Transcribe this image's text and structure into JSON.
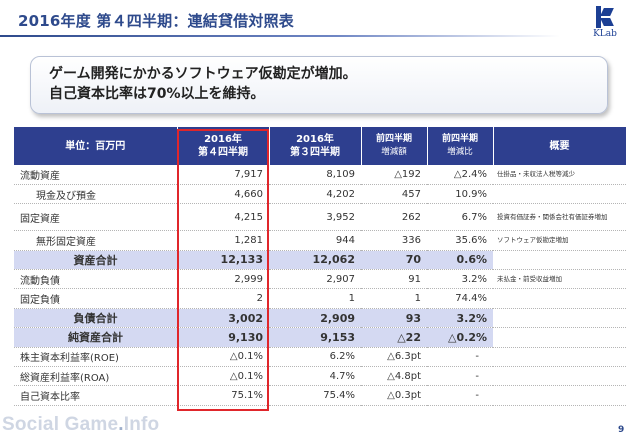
{
  "title": "2016年度 第４四半期：連結貸借対照表",
  "logo_text": "KLab",
  "callout": {
    "line1": "ゲーム開発にかかるソフトウェア仮勘定が増加。",
    "line2": "自己資本比率は70%以上を維持。"
  },
  "table": {
    "headers": {
      "unit": "単位：百万円",
      "q4_line1": "2016年",
      "q4_line2": "第４四半期",
      "q3_line1": "2016年",
      "q3_line2": "第３四半期",
      "diff_line1": "前四半期",
      "diff_line2": "増減額",
      "ratio_line1": "前四半期",
      "ratio_line2": "増減比",
      "summary": "概要"
    },
    "rows": [
      {
        "label": "流動資産",
        "q4": "7,917",
        "q3": "8,109",
        "diff": "△192",
        "ratio": "△2.4%",
        "note": "仕掛品・未収法人税等減少"
      },
      {
        "label": "現金及び預金",
        "q4": "4,660",
        "q3": "4,202",
        "diff": "457",
        "ratio": "10.9%",
        "note": ""
      },
      {
        "label": "固定資産",
        "q4": "4,215",
        "q3": "3,952",
        "diff": "262",
        "ratio": "6.7%",
        "note": "投資有価証券・関係会社有価証券増加"
      },
      {
        "label": "無形固定資産",
        "q4": "1,281",
        "q3": "944",
        "diff": "336",
        "ratio": "35.6%",
        "note": "ソフトウェア仮勘定増加"
      },
      {
        "label": "資産合計",
        "q4": "12,133",
        "q3": "12,062",
        "diff": "70",
        "ratio": "0.6%",
        "note": ""
      },
      {
        "label": "流動負債",
        "q4": "2,999",
        "q3": "2,907",
        "diff": "91",
        "ratio": "3.2%",
        "note": "未払金・前受収益増加"
      },
      {
        "label": "固定負債",
        "q4": "2",
        "q3": "1",
        "diff": "1",
        "ratio": "74.4%",
        "note": ""
      },
      {
        "label": "負債合計",
        "q4": "3,002",
        "q3": "2,909",
        "diff": "93",
        "ratio": "3.2%",
        "note": ""
      },
      {
        "label": "純資産合計",
        "q4": "9,130",
        "q3": "9,153",
        "diff": "△22",
        "ratio": "△0.2%",
        "note": ""
      },
      {
        "label": "株主資本利益率(ROE)",
        "q4": "△0.1%",
        "q3": "6.2%",
        "diff": "△6.3pt",
        "ratio": "-",
        "note": ""
      },
      {
        "label": "総資産利益率(ROA)",
        "q4": "△0.1%",
        "q3": "4.7%",
        "diff": "△4.8pt",
        "ratio": "-",
        "note": ""
      },
      {
        "label": "自己資本比率",
        "q4": "75.1%",
        "q3": "75.4%",
        "diff": "△0.3pt",
        "ratio": "-",
        "note": ""
      }
    ]
  },
  "footer": {
    "watermark_main": "Social Game",
    "watermark_dot": ".",
    "watermark_tail": "Info",
    "page_number": "9"
  },
  "colors": {
    "header_bg": "#2e3f8f",
    "total_row_bg": "#d4d9f2",
    "highlight": "#e0262b",
    "title": "#2e4a8c"
  }
}
